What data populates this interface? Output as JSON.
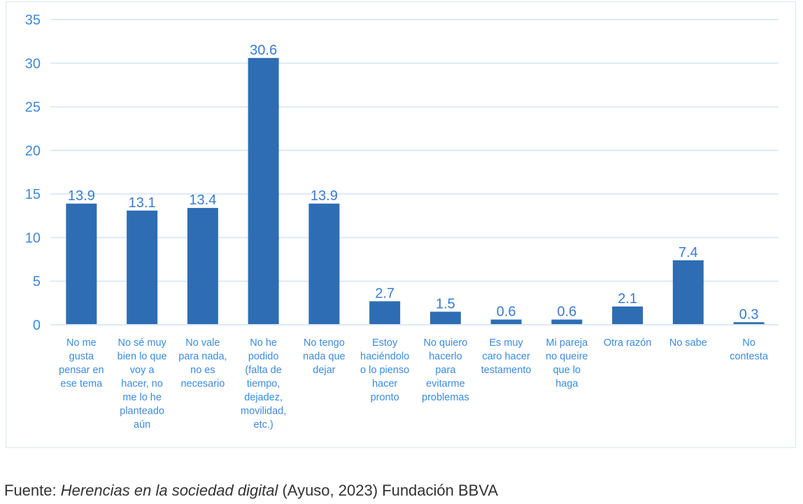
{
  "chart_data": {
    "type": "bar",
    "categories": [
      [
        "No me",
        "gusta",
        "pensar en",
        "ese tema"
      ],
      [
        "No sé muy",
        "bien lo que",
        "voy a",
        "hacer, no",
        "me lo he",
        "planteado",
        "aún"
      ],
      [
        "No vale",
        "para nada,",
        "no es",
        "necesario"
      ],
      [
        "No he",
        "podido",
        "(falta de",
        "tiempo,",
        "dejadez,",
        "movilidad,",
        "etc.)"
      ],
      [
        "No tengo",
        "nada que",
        "dejar"
      ],
      [
        "Estoy",
        "haciéndolo",
        "o lo pienso",
        "hacer",
        "pronto"
      ],
      [
        "No quiero",
        "hacerlo",
        "para",
        "evitarme",
        "problemas"
      ],
      [
        "Es muy",
        "caro hacer",
        "testamento"
      ],
      [
        "Mi pareja",
        "no queire",
        "que lo",
        "haga"
      ],
      [
        "Otra razón"
      ],
      [
        "No sabe"
      ],
      [
        "No",
        "contesta"
      ]
    ],
    "values": [
      13.9,
      13.1,
      13.4,
      30.6,
      13.9,
      2.7,
      1.5,
      0.6,
      0.6,
      2.1,
      7.4,
      0.3
    ],
    "data_labels": [
      "13.9",
      "13.1",
      "13.4",
      "30.6",
      "13.9",
      "2.7",
      "1.5",
      "0.6",
      "0.6",
      "2.1",
      "7.4",
      "0.3"
    ],
    "ylim": [
      0,
      35
    ],
    "yticks": [
      "0",
      "5",
      "10",
      "15",
      "20",
      "25",
      "30",
      "35"
    ],
    "grid": true,
    "legend": "none",
    "title": "",
    "xlabel": "",
    "ylabel": "",
    "colors": {
      "bar": "#2e6db4",
      "grid": "#dceaf8",
      "tick_text": "#3a8ae0",
      "label_text": "#3a8ae0",
      "value_text": "#3a7bd0"
    }
  },
  "source": {
    "prefix": "Fuente: ",
    "title": "Herencias en la sociedad digital",
    "suffix": " (Ayuso, 2023) Fundación BBVA"
  }
}
